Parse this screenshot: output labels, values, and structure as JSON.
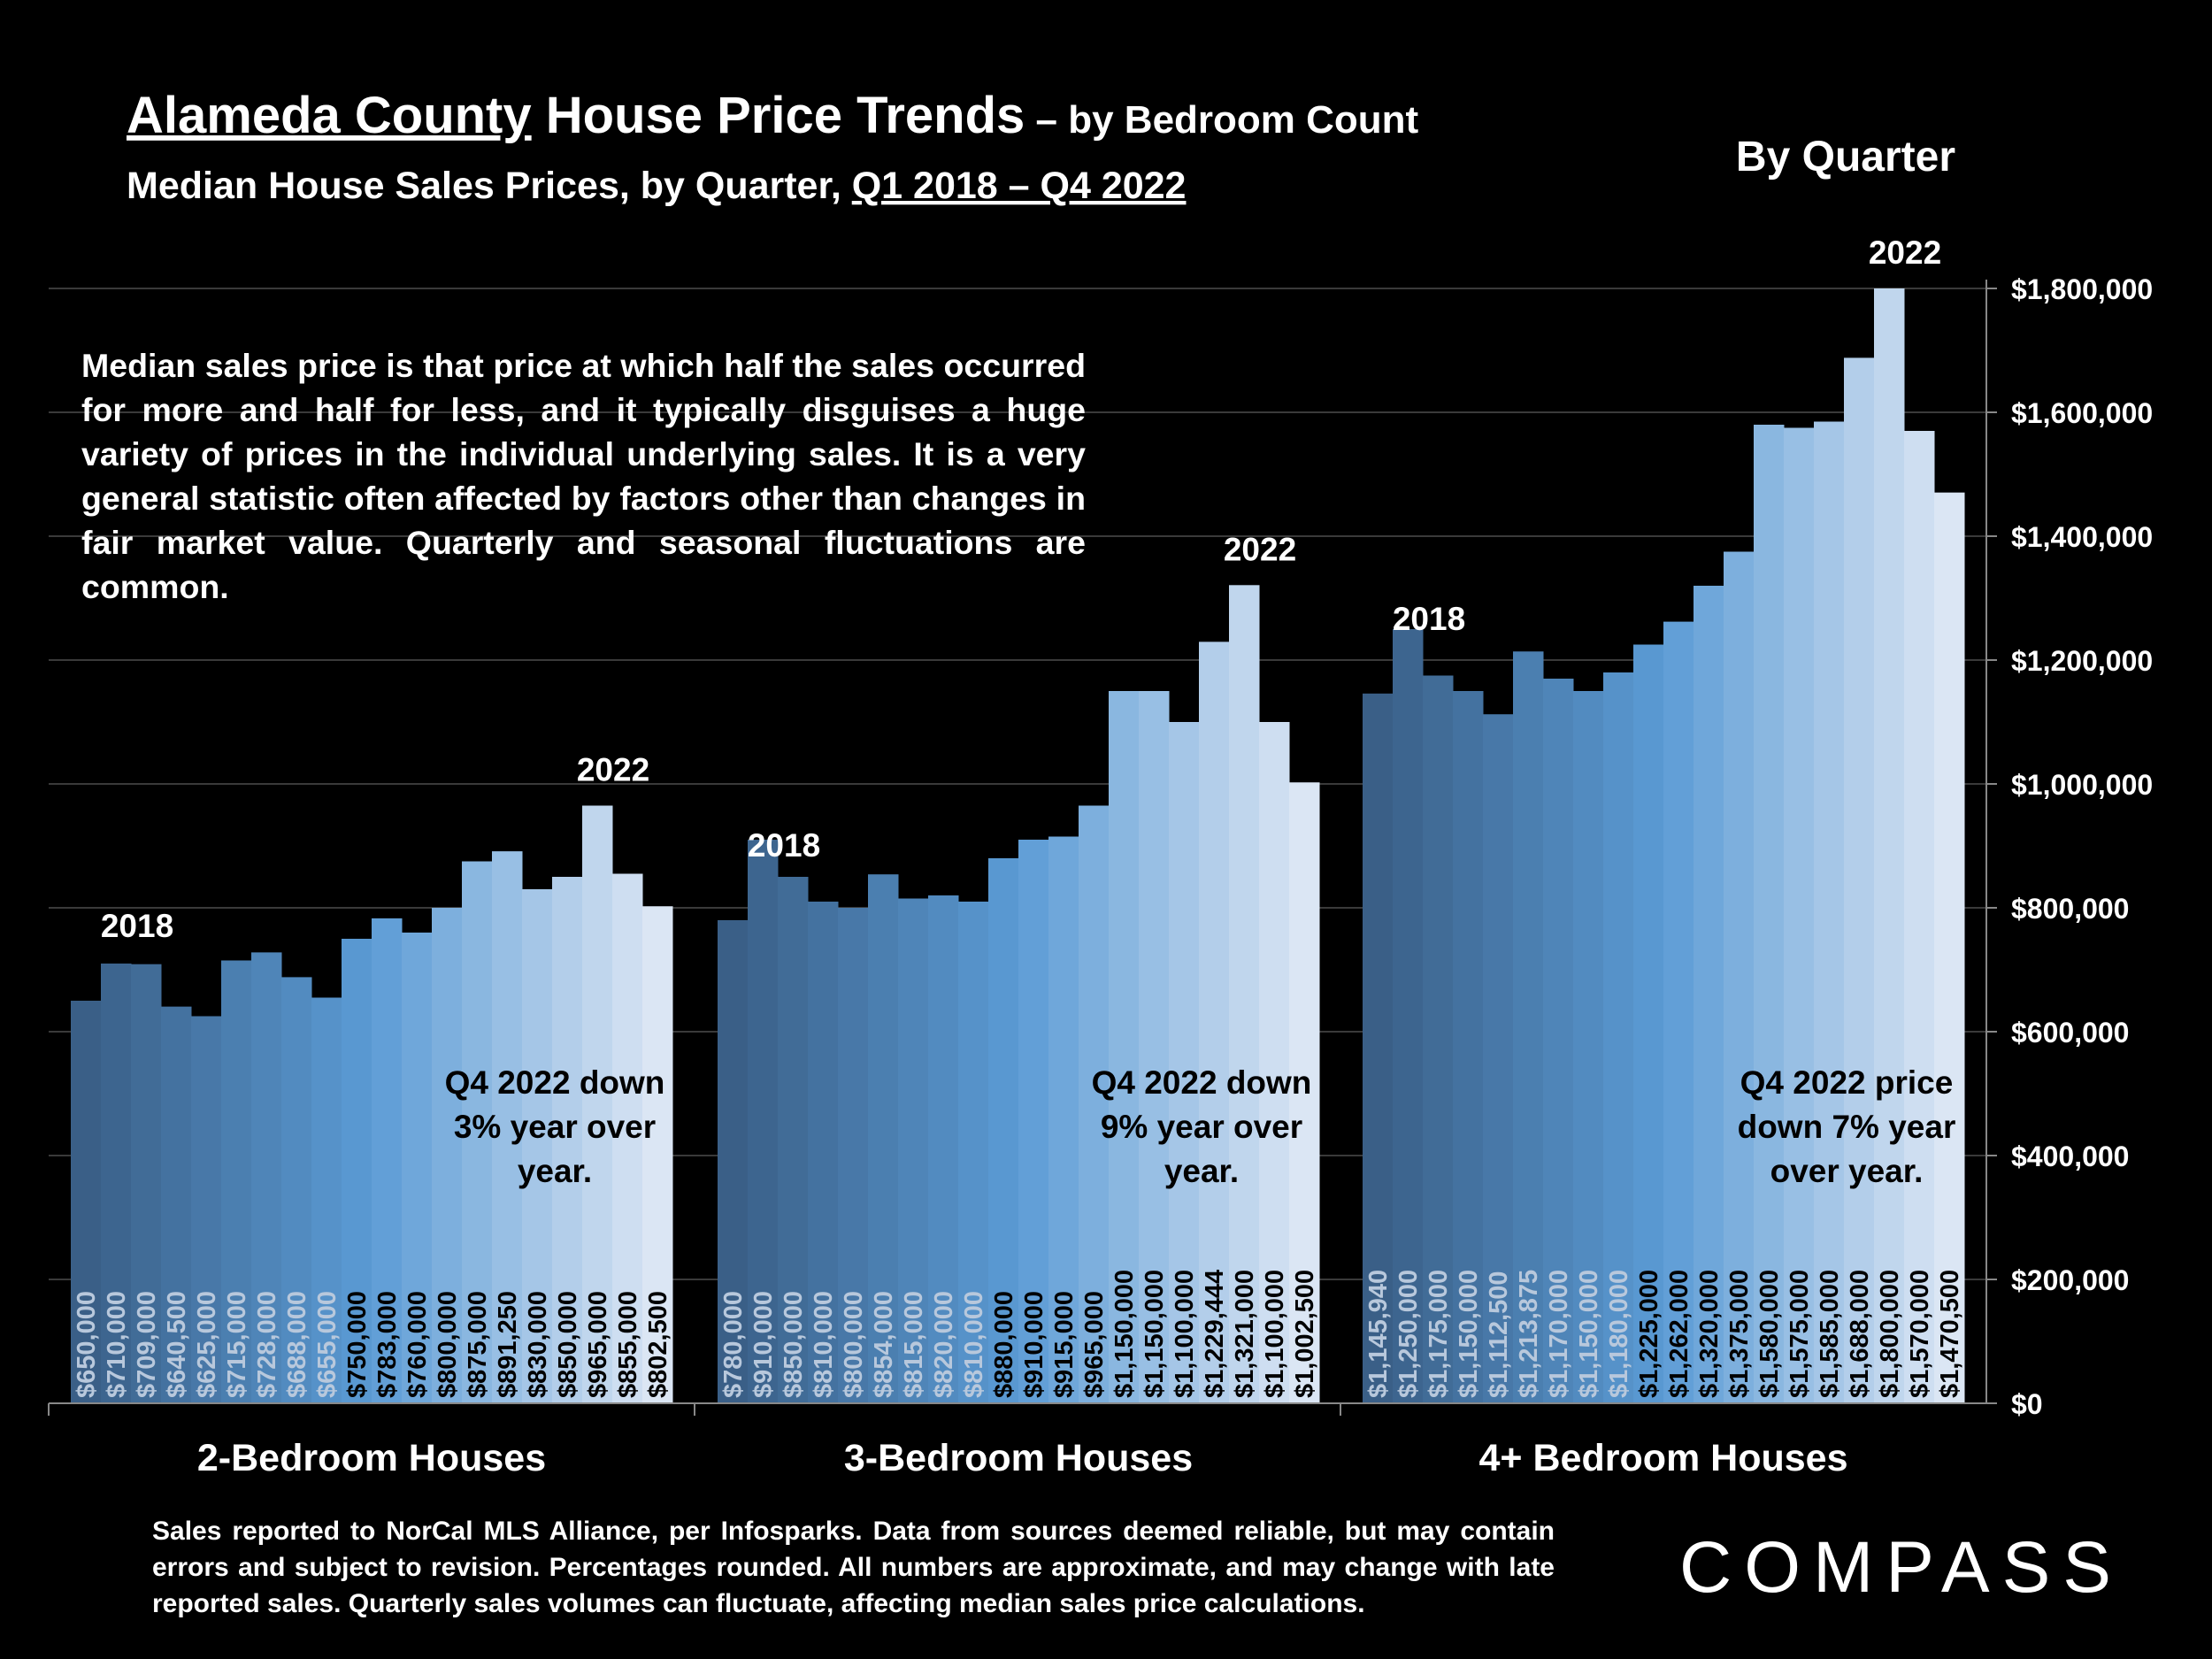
{
  "title": {
    "county": "Alameda County",
    "main": " House Price Trends",
    "suffix": " – by Bedroom Count",
    "subtitle_prefix": "Median House Sales Prices, by Quarter, ",
    "subtitle_range": "Q1 2018 – Q4 2022"
  },
  "by_quarter": "By Quarter",
  "note": "Median sales price is that price at which half the sales occurred for more and half for less, and it typically disguises a huge variety of prices in the individual underlying sales. It is a very general statistic often affected by factors other than changes in fair market value. Quarterly and seasonal fluctuations are common.",
  "footer": "Sales reported to NorCal MLS Alliance, per Infosparks. Data from sources deemed reliable, but may contain errors and subject to revision. Percentages rounded. All numbers are approximate, and may change with late reported sales. Quarterly sales volumes can fluctuate, affecting median sales price calculations.",
  "logo": "COMPASS",
  "chart_data": {
    "type": "bar",
    "ylim": [
      0,
      1800000
    ],
    "yticks": [
      "$0",
      "$200,000",
      "$400,000",
      "$600,000",
      "$800,000",
      "$1,000,000",
      "$1,200,000",
      "$1,400,000",
      "$1,600,000",
      "$1,800,000"
    ],
    "grid": true,
    "colors": {
      "start": "#3a5f87",
      "mid": "#5b9bd5",
      "end": "#dbe6f4"
    },
    "groups": [
      {
        "name": "2-Bedroom Houses",
        "values": [
          650000,
          710000,
          709000,
          640500,
          625000,
          715000,
          728000,
          688000,
          655000,
          750000,
          783000,
          760000,
          800000,
          875000,
          891250,
          830000,
          850000,
          965000,
          855000,
          802500
        ],
        "labels": [
          "$650,000",
          "$710,000",
          "$709,000",
          "$640,500",
          "$625,000",
          "$715,000",
          "$728,000",
          "$688,000",
          "$655,000",
          "$750,000",
          "$783,000",
          "$760,000",
          "$800,000",
          "$875,000",
          "$891,250",
          "$830,000",
          "$850,000",
          "$965,000",
          "$855,000",
          "$802,500"
        ],
        "year_start": "2018",
        "year_end": "2022",
        "note": [
          "Q4 2022 down",
          "3% year over",
          "year."
        ]
      },
      {
        "name": "3-Bedroom Houses",
        "values": [
          780000,
          910000,
          850000,
          810000,
          800000,
          854000,
          815000,
          820000,
          810000,
          880000,
          910000,
          915000,
          965000,
          1150000,
          1150000,
          1100000,
          1229444,
          1321000,
          1100000,
          1002500
        ],
        "labels": [
          "$780,000",
          "$910,000",
          "$850,000",
          "$810,000",
          "$800,000",
          "$854,000",
          "$815,000",
          "$820,000",
          "$810,000",
          "$880,000",
          "$910,000",
          "$915,000",
          "$965,000",
          "$1,150,000",
          "$1,150,000",
          "$1,100,000",
          "$1,229,444",
          "$1,321,000",
          "$1,100,000",
          "$1,002,500"
        ],
        "year_start": "2018",
        "year_end": "2022",
        "note": [
          "Q4 2022 down",
          "9% year over",
          "year."
        ]
      },
      {
        "name": "4+ Bedroom Houses",
        "values": [
          1145940,
          1250000,
          1175000,
          1150000,
          1112500,
          1213875,
          1170000,
          1150000,
          1180000,
          1225000,
          1262000,
          1320000,
          1375000,
          1580000,
          1575000,
          1585000,
          1688000,
          1800000,
          1570000,
          1470500
        ],
        "labels": [
          "$1,145,940",
          "$1,250,000",
          "$1,175,000",
          "$1,150,000",
          "$1,112,500",
          "$1,213,875",
          "$1,170,000",
          "$1,150,000",
          "$1,180,000",
          "$1,225,000",
          "$1,262,000",
          "$1,320,000",
          "$1,375,000",
          "$1,580,000",
          "$1,575,000",
          "$1,585,000",
          "$1,688,000",
          "$1,800,000",
          "$1,570,000",
          "$1,470,500"
        ],
        "year_start": "2018",
        "year_end": "2022",
        "note": [
          "Q4 2022 price",
          "down 7% year",
          "over year."
        ]
      }
    ]
  }
}
